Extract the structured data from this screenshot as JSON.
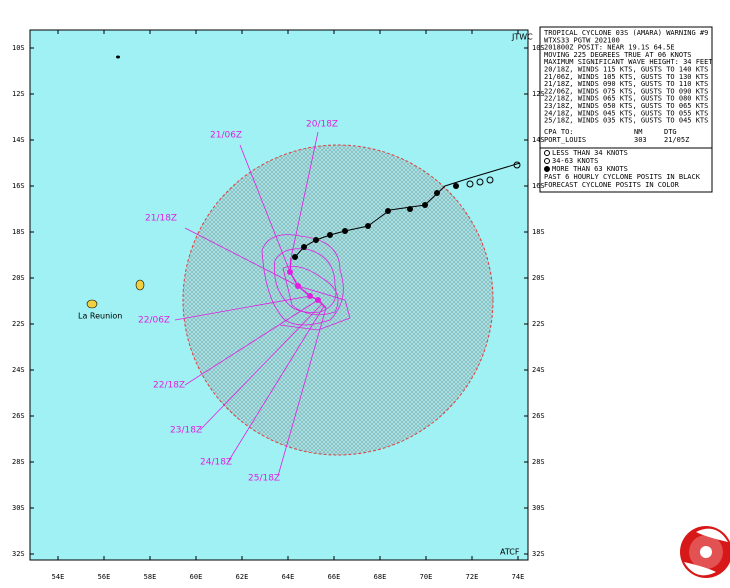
{
  "map": {
    "corner_labels": {
      "top": "JTWC",
      "bottom": "ATCF"
    },
    "lat_labels": [
      "10S",
      "12S",
      "14S",
      "16S",
      "18S",
      "20S",
      "22S",
      "24S",
      "26S",
      "28S",
      "30S",
      "32S"
    ],
    "lon_labels": [
      "54E",
      "56E",
      "58E",
      "60E",
      "62E",
      "64E",
      "66E",
      "68E",
      "70E",
      "72E",
      "74E"
    ],
    "place_label": "La Reunion",
    "forecast_labels": [
      "20/18Z",
      "21/06Z",
      "21/18Z",
      "22/06Z",
      "22/18Z",
      "23/18Z",
      "24/18Z",
      "25/18Z"
    ]
  },
  "warning": {
    "lines": [
      "TROPICAL CYCLONE 03S (AMARA) WARNING #9",
      "WTXS33 PGTW 202100",
      "201800Z POSIT: NEAR 19.1S 64.5E",
      "MOVING 225 DEGREES TRUE AT 06 KNOTS",
      "MAXIMUM SIGNIFICANT WAVE HEIGHT: 34 FEET",
      "20/18Z, WINDS 115 KTS, GUSTS TO 140 KTS",
      "21/06Z, WINDS 105 KTS, GUSTS TO 130 KTS",
      "21/18Z, WINDS 090 KTS, GUSTS TO 110 KTS",
      "22/06Z, WINDS 075 KTS, GUSTS TO 090 KTS",
      "22/18Z, WINDS 065 KTS, GUSTS TO 080 KTS",
      "23/18Z, WINDS 050 KTS, GUSTS TO 065 KTS",
      "24/18Z, WINDS 045 KTS, GUSTS TO 055 KTS",
      "25/18Z, WINDS 035 KTS, GUSTS TO 045 KTS"
    ],
    "cpa_header": [
      "CPA TO:",
      "NM",
      "DTG"
    ],
    "cpa_row": [
      "PORT_LOUIS",
      "303",
      "21/05Z"
    ]
  },
  "legend": {
    "items": [
      "LESS THAN 34 KNOTS",
      "34-63 KNOTS",
      "MORE THAN 63 KNOTS"
    ],
    "notes": [
      "PAST 6 HOURLY CYCLONE POSITS IN BLACK",
      "FORECAST CYCLONE POSITS IN COLOR"
    ]
  }
}
